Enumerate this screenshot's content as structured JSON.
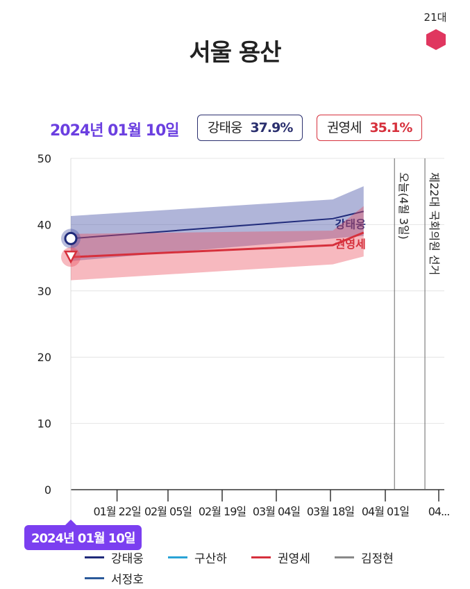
{
  "header": {
    "title": "서울 용산",
    "term": "21대"
  },
  "hover": {
    "date": "2024년 01월 10일",
    "badges": [
      {
        "name": "강태웅",
        "value": "37.9%"
      },
      {
        "name": "권영세",
        "value": "35.1%"
      }
    ]
  },
  "colors": {
    "kang": "#1f2a7a",
    "kwon": "#d6303c",
    "gu": "#29a3d6",
    "kim": "#888888",
    "seo": "#2b5a9a",
    "accent": "#7b3ff0"
  },
  "chart_data": {
    "type": "line",
    "title": "서울 용산",
    "ylim": [
      0,
      50
    ],
    "yticks": [
      "0",
      "10",
      "20",
      "30",
      "40",
      "50"
    ],
    "xlabel_ticks": [
      "01월 22일",
      "02월 05일",
      "02월 19일",
      "03월 04일",
      "03월 18일",
      "04월 01일",
      "04..."
    ],
    "x_days_from_jan10": [
      0,
      68,
      76
    ],
    "series": [
      {
        "name": "강태웅",
        "values": [
          37.9,
          40.9,
          42.0
        ],
        "upper": [
          41.3,
          43.8,
          45.8
        ],
        "lower": [
          34.5,
          37.9,
          38.3
        ]
      },
      {
        "name": "권영세",
        "values": [
          35.1,
          36.9,
          38.8
        ],
        "upper": [
          38.6,
          39.1,
          42.8
        ],
        "lower": [
          31.6,
          34.0,
          35.2
        ]
      }
    ],
    "markers": [
      {
        "label": "오늘(4월 3일)",
        "day": 84
      },
      {
        "label": "제22대 국회의원 선거",
        "day": 91
      }
    ],
    "legend": [
      "강태웅",
      "구산하",
      "권영세",
      "김정현",
      "서정호"
    ],
    "legend_position": "bottom"
  }
}
